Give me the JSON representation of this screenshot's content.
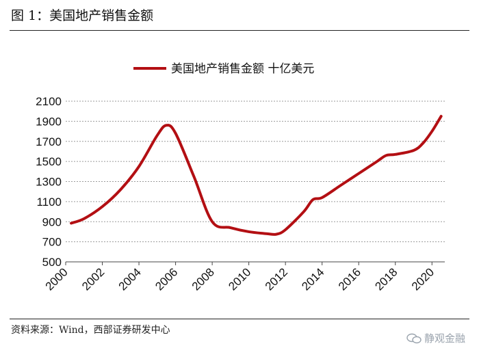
{
  "figure": {
    "title": "图 1：美国地产销售金额",
    "source": "资料来源：Wind，西部证券研发中心",
    "watermark": "静观金融"
  },
  "colors": {
    "series": "#b30f13",
    "grid": "#9a9a9a",
    "axis": "#444444"
  },
  "chart_data": {
    "type": "line",
    "title": "",
    "legend": {
      "position": "top-center"
    },
    "series": [
      {
        "name": "美国地产销售金额 十亿美元",
        "x": [
          2000.3,
          2001,
          2002,
          2003,
          2004,
          2005,
          2005.5,
          2006,
          2007,
          2008,
          2009,
          2010,
          2011,
          2011.5,
          2012,
          2013,
          2013.5,
          2014,
          2015,
          2016,
          2017,
          2017.5,
          2018,
          2019,
          2019.5,
          2020,
          2020.5
        ],
        "values": [
          885,
          930,
          1050,
          1220,
          1450,
          1760,
          1860,
          1780,
          1350,
          900,
          840,
          800,
          780,
          775,
          820,
          1000,
          1120,
          1140,
          1260,
          1380,
          1500,
          1560,
          1570,
          1610,
          1680,
          1800,
          1950
        ]
      }
    ],
    "x_ticks": [
      "2000",
      "2002",
      "2004",
      "2006",
      "2008",
      "2010",
      "2012",
      "2014",
      "2016",
      "2018",
      "2020"
    ],
    "y_ticks": [
      "500",
      "700",
      "900",
      "1100",
      "1300",
      "1500",
      "1700",
      "1900",
      "2100"
    ],
    "xlim": [
      2000,
      2020.7
    ],
    "ylim": [
      500,
      2100
    ],
    "grid": "horizontal-dashed"
  }
}
